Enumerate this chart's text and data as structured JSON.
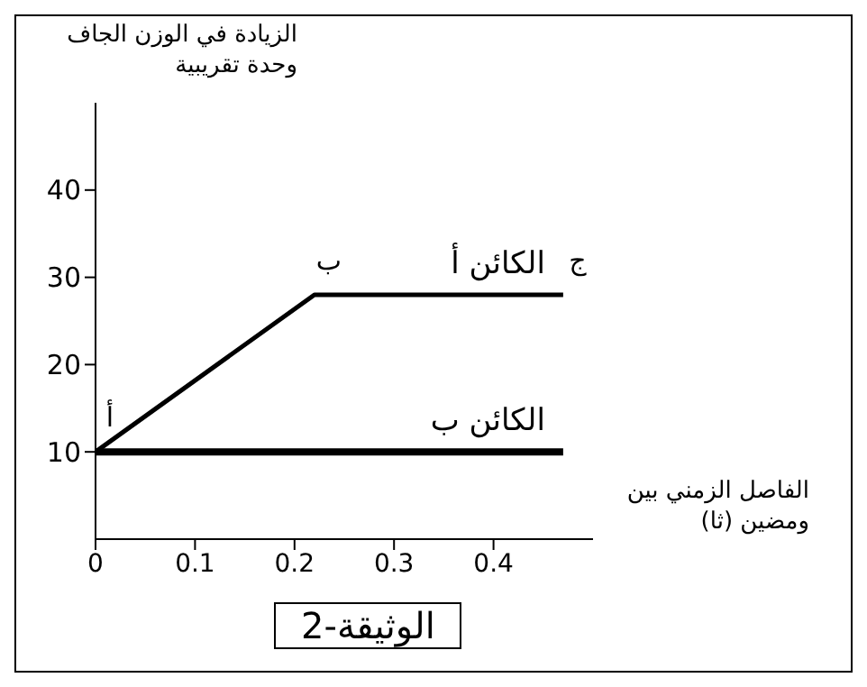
{
  "chart_data": {
    "type": "line",
    "xlabel": "الفاصل الزمني بين ومضين (ثا)",
    "ylabel": "الزيادة في الوزن الجاف وحدة تقريبية",
    "xlim": [
      0,
      0.5
    ],
    "xticks": [
      0,
      0.1,
      0.2,
      0.3,
      0.4
    ],
    "ylim": [
      0,
      50
    ],
    "yticks": [
      10,
      20,
      30,
      40
    ],
    "grid": false,
    "legend": false,
    "marker": "none",
    "line_style": "solid",
    "series": [
      {
        "name": "الكائن أ",
        "color": "#000000",
        "x": [
          0,
          0.22,
          0.47
        ],
        "values": [
          10,
          28,
          28
        ]
      },
      {
        "name": "الكائن ب",
        "color": "#000000",
        "x": [
          0,
          0.47
        ],
        "values": [
          10,
          10
        ]
      }
    ],
    "annotations": [
      {
        "text": "أ",
        "x": 0,
        "y": 10
      },
      {
        "text": "ب",
        "x": 0.22,
        "y": 28
      },
      {
        "text": "ج",
        "x": 0.47,
        "y": 28
      },
      "الوثيقة-2"
    ]
  }
}
